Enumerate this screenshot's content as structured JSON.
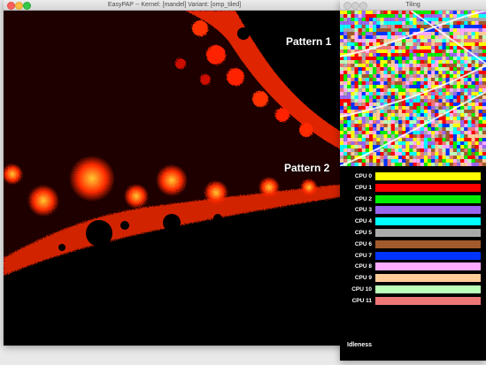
{
  "main_window": {
    "title": "EasyPAP -- Kernel: [mandel]   Variant: [omp_tiled]"
  },
  "tiling_window": {
    "title": "Tiling"
  },
  "annotations": {
    "pattern1": "Pattern 1",
    "pattern2": "Pattern 2"
  },
  "cpus": [
    {
      "label": "CPU  0",
      "color": "#ffff00"
    },
    {
      "label": "CPU  1",
      "color": "#ff0000"
    },
    {
      "label": "CPU  2",
      "color": "#00ee00"
    },
    {
      "label": "CPU  3",
      "color": "#9966ee"
    },
    {
      "label": "CPU  4",
      "color": "#00ffff"
    },
    {
      "label": "CPU  5",
      "color": "#aaaaaa"
    },
    {
      "label": "CPU  6",
      "color": "#a05a2c"
    },
    {
      "label": "CPU  7",
      "color": "#0033ff"
    },
    {
      "label": "CPU  8",
      "color": "#ffaaff"
    },
    {
      "label": "CPU  9",
      "color": "#ffcc99"
    },
    {
      "label": "CPU 10",
      "color": "#bbffbb"
    },
    {
      "label": "CPU 11",
      "color": "#ee7777"
    }
  ],
  "idleness": {
    "label": "Idleness"
  },
  "colors": {
    "fractal_bg": "#1f0000",
    "fractal_fg": "#ff2a00",
    "fractal_hot": "#ffcc33",
    "set_interior": "#000000"
  }
}
